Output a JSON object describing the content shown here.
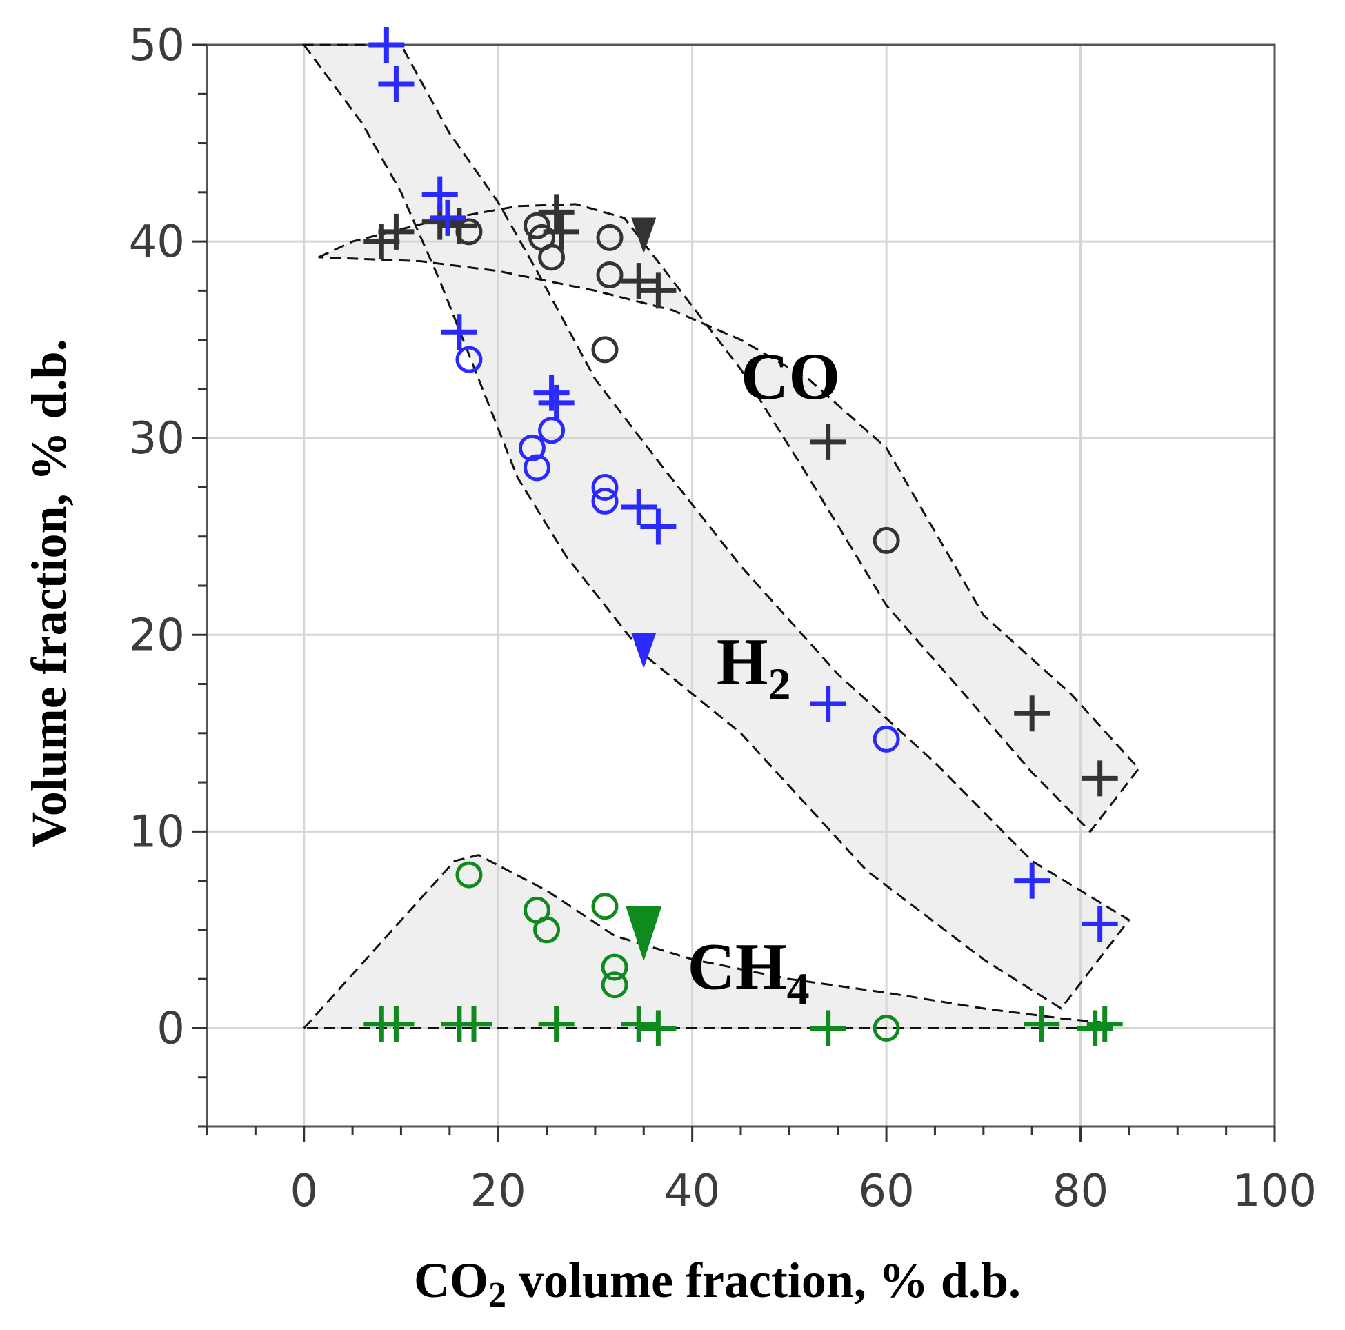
{
  "chart_data": {
    "type": "scatter",
    "title": "",
    "xlabel": {
      "main": "CO",
      "sub": "2",
      "rest": " volume fraction, % d.b."
    },
    "ylabel": "Volume fraction, % d.b.",
    "xlim": [
      -10,
      100
    ],
    "ylim": [
      -5,
      50
    ],
    "xticks": [
      0,
      20,
      40,
      60,
      80,
      100
    ],
    "yticks": [
      0,
      10,
      20,
      30,
      40,
      50
    ],
    "grid": true,
    "colors": {
      "CO": "#333333",
      "H2": "#2a2aff",
      "CH4": "#0f8a1e"
    },
    "labels": [
      {
        "series": "CO",
        "text": "CO",
        "sub": "",
        "x": 45,
        "y": 32
      },
      {
        "series": "H2",
        "text": "H",
        "sub": "2",
        "x": 42.5,
        "y": 17.5
      },
      {
        "series": "CH4",
        "text": "CH",
        "sub": "4",
        "x": 39.5,
        "y": 2
      }
    ],
    "bands": [
      {
        "series": "CO",
        "points": [
          [
            1.5,
            39.2
          ],
          [
            5,
            40
          ],
          [
            13,
            41
          ],
          [
            22,
            41.8
          ],
          [
            28,
            41.9
          ],
          [
            33,
            41.2
          ],
          [
            38,
            38
          ],
          [
            45,
            33.5
          ],
          [
            52,
            28
          ],
          [
            60,
            21.5
          ],
          [
            68,
            17
          ],
          [
            75,
            13
          ],
          [
            81,
            10
          ],
          [
            86,
            13.2
          ],
          [
            79,
            17
          ],
          [
            70,
            21
          ],
          [
            60,
            29.5
          ],
          [
            52,
            33
          ],
          [
            45,
            35
          ],
          [
            38,
            36.5
          ],
          [
            30,
            37.5
          ],
          [
            20,
            38.5
          ],
          [
            12,
            39
          ],
          [
            1.5,
            39.2
          ]
        ]
      },
      {
        "series": "H2",
        "points": [
          [
            0,
            50
          ],
          [
            6,
            46
          ],
          [
            10,
            42.5
          ],
          [
            14,
            38
          ],
          [
            18,
            33
          ],
          [
            22,
            28
          ],
          [
            27,
            24
          ],
          [
            35,
            19
          ],
          [
            45,
            15
          ],
          [
            58,
            8
          ],
          [
            70,
            3.5
          ],
          [
            78,
            1
          ],
          [
            85,
            5.5
          ],
          [
            75,
            8.5
          ],
          [
            65,
            13.5
          ],
          [
            55,
            18
          ],
          [
            45,
            23.5
          ],
          [
            37,
            28.5
          ],
          [
            30,
            33
          ],
          [
            24,
            38.5
          ],
          [
            20,
            42
          ],
          [
            15,
            45.5
          ],
          [
            10,
            50
          ]
        ]
      },
      {
        "series": "CH4",
        "points": [
          [
            0,
            0
          ],
          [
            15.5,
            8.5
          ],
          [
            18,
            8.8
          ],
          [
            25,
            7
          ],
          [
            32,
            4.7
          ],
          [
            40,
            3.5
          ],
          [
            50,
            2.5
          ],
          [
            60,
            1.8
          ],
          [
            70,
            1
          ],
          [
            78,
            0.5
          ],
          [
            82,
            0.3
          ],
          [
            82,
            0
          ],
          [
            0,
            0
          ]
        ]
      }
    ],
    "series": [
      {
        "name": "CO",
        "marker": "plus",
        "points": [
          [
            8,
            40
          ],
          [
            9.5,
            40.5
          ],
          [
            14,
            41
          ],
          [
            16,
            40.8
          ],
          [
            26,
            41.5
          ],
          [
            26.5,
            40.5
          ],
          [
            34.5,
            38
          ],
          [
            36.5,
            37.5
          ],
          [
            54,
            29.8
          ],
          [
            75,
            16
          ],
          [
            82,
            12.7
          ]
        ]
      },
      {
        "name": "CO",
        "marker": "circle",
        "points": [
          [
            17,
            40.5
          ],
          [
            24,
            40.8
          ],
          [
            24.5,
            40.2
          ],
          [
            25.5,
            39.2
          ],
          [
            31.5,
            40.2
          ],
          [
            31.5,
            38.3
          ],
          [
            31,
            34.5
          ],
          [
            60,
            24.8
          ]
        ]
      },
      {
        "name": "CO",
        "marker": "triangle",
        "points": [
          [
            35,
            40.3
          ]
        ]
      },
      {
        "name": "H2",
        "marker": "plus",
        "points": [
          [
            8.5,
            50
          ],
          [
            9.5,
            48
          ],
          [
            14,
            42.4
          ],
          [
            14.8,
            41.2
          ],
          [
            16,
            35.4
          ],
          [
            25.5,
            32.3
          ],
          [
            26,
            31.8
          ],
          [
            34.5,
            26.5
          ],
          [
            36.5,
            25.5
          ],
          [
            54,
            16.5
          ],
          [
            75,
            7.5
          ],
          [
            82,
            5.3
          ]
        ]
      },
      {
        "name": "H2",
        "marker": "circle",
        "points": [
          [
            17,
            34
          ],
          [
            23.5,
            29.5
          ],
          [
            24,
            28.5
          ],
          [
            25.5,
            30.4
          ],
          [
            31,
            27.5
          ],
          [
            31,
            26.8
          ],
          [
            60,
            14.7
          ]
        ]
      },
      {
        "name": "H2",
        "marker": "triangle",
        "points": [
          [
            35,
            19.2
          ]
        ]
      },
      {
        "name": "CH4",
        "marker": "plus",
        "points": [
          [
            8,
            0.2
          ],
          [
            9.5,
            0.2
          ],
          [
            16,
            0.2
          ],
          [
            17.5,
            0.2
          ],
          [
            26,
            0.2
          ],
          [
            34.5,
            0.2
          ],
          [
            36.5,
            0
          ],
          [
            54,
            0
          ],
          [
            76,
            0.2
          ],
          [
            81.5,
            0
          ],
          [
            82.5,
            0.2
          ]
        ]
      },
      {
        "name": "CH4",
        "marker": "circle",
        "points": [
          [
            17,
            7.8
          ],
          [
            24,
            6
          ],
          [
            25,
            5
          ],
          [
            31,
            6.2
          ],
          [
            32,
            3.1
          ],
          [
            32,
            2.2
          ],
          [
            60,
            0
          ]
        ]
      },
      {
        "name": "CH4",
        "marker": "triangle",
        "points": [
          [
            35,
            4.8
          ]
        ]
      }
    ]
  }
}
